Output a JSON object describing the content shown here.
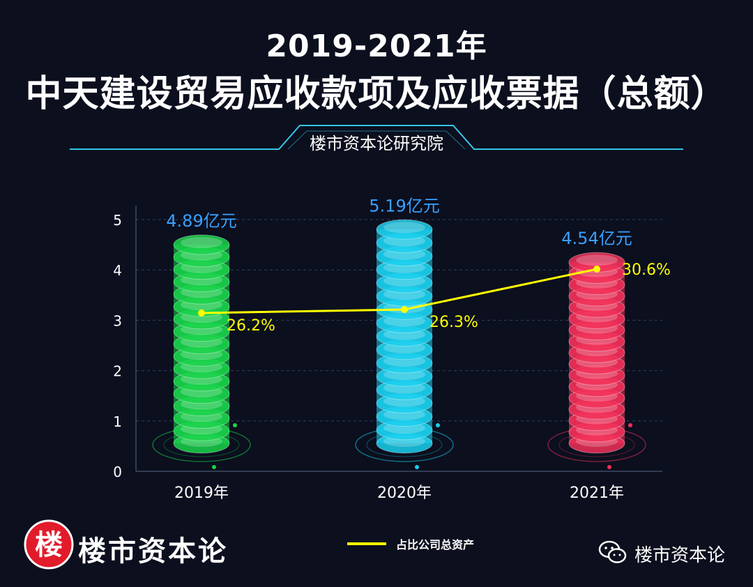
{
  "header": {
    "title_top": "2019-2021年",
    "title_main": "中天建设贸易应收款项及应收票据（总额）",
    "source": "楼市资本论研究院"
  },
  "footer": {
    "logo_char": "楼",
    "brand": "楼市资本论",
    "wechat_label": "楼市资本论"
  },
  "legend": {
    "line_label": "占比公司总资产"
  },
  "colors": {
    "background": "#0b0f1e",
    "bar_2019": "#19d34a",
    "bar_2020": "#1ad0ee",
    "bar_2021": "#f22f58",
    "line": "#ffff00",
    "value_label": "#3aa0ff",
    "accent": "#35c6e6"
  },
  "chart_data": {
    "type": "bar",
    "categories": [
      "2019年",
      "2020年",
      "2021年"
    ],
    "values": [
      4.89,
      5.19,
      4.54
    ],
    "value_labels": [
      "4.89亿元",
      "5.19亿元",
      "4.54亿元"
    ],
    "ylim": [
      0,
      5
    ],
    "yticks": [
      "0",
      "1",
      "2",
      "3",
      "4",
      "5"
    ],
    "grid": true,
    "line_series": {
      "name": "占比公司总资产",
      "values": [
        26.2,
        26.3,
        30.6
      ],
      "labels": [
        "26.2%",
        "26.3%",
        "30.6%"
      ]
    },
    "legend_position": "bottom-center"
  }
}
